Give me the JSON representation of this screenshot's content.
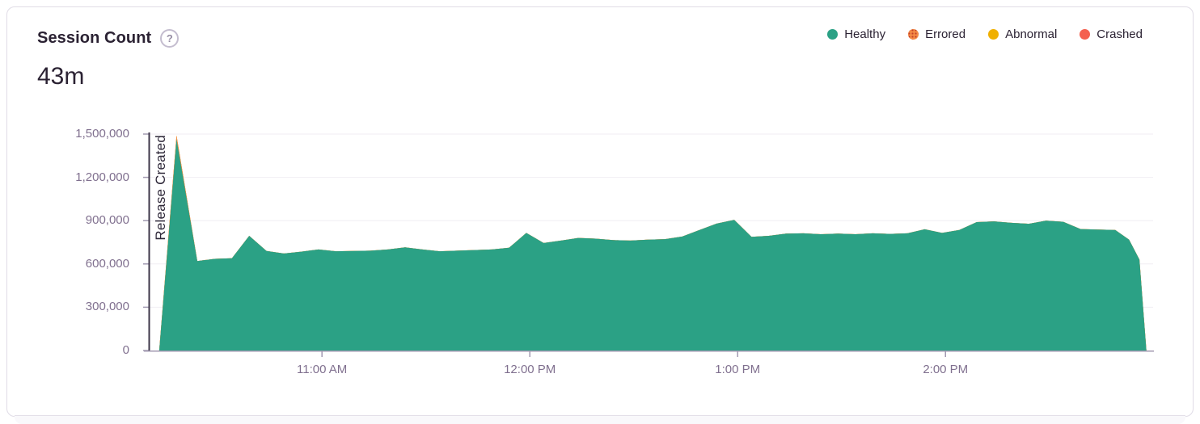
{
  "card": {
    "title": "Session Count",
    "help_icon": "?",
    "big_value": "43m",
    "legend": [
      {
        "label": "Healthy",
        "color": "#2ba185",
        "pattern": "solid"
      },
      {
        "label": "Errored",
        "color": "#f58c46",
        "pattern": "dotted"
      },
      {
        "label": "Abnormal",
        "color": "#f0b000",
        "pattern": "solid"
      },
      {
        "label": "Crashed",
        "color": "#f4604f",
        "pattern": "solid"
      }
    ]
  },
  "chart_data": {
    "type": "area",
    "stacked": true,
    "title": "Session Count",
    "xlabel": "",
    "ylabel": "",
    "grid": "horizontal",
    "legend_position": "top-right",
    "x_range": [
      "10:10",
      "14:59"
    ],
    "y_range": [
      0,
      1500000
    ],
    "y_ticks": [
      {
        "value": 0,
        "label": "0"
      },
      {
        "value": 300000,
        "label": "300,000"
      },
      {
        "value": 600000,
        "label": "600,000"
      },
      {
        "value": 900000,
        "label": "900,000"
      },
      {
        "value": 1200000,
        "label": "1,200,000"
      },
      {
        "value": 1500000,
        "label": "1,500,000"
      }
    ],
    "x_ticks": [
      {
        "time": "11:00",
        "label": "11:00 AM"
      },
      {
        "time": "12:00",
        "label": "12:00 PM"
      },
      {
        "time": "13:00",
        "label": "1:00 PM"
      },
      {
        "time": "14:00",
        "label": "2:00 PM"
      }
    ],
    "annotation": {
      "label": "Release Created",
      "time": "10:10"
    },
    "times": [
      "10:13",
      "10:18",
      "10:24",
      "10:29",
      "10:34",
      "10:39",
      "10:44",
      "10:49",
      "10:54",
      "10:59",
      "11:04",
      "11:09",
      "11:14",
      "11:19",
      "11:24",
      "11:29",
      "11:34",
      "11:39",
      "11:44",
      "11:49",
      "11:54",
      "11:59",
      "12:04",
      "12:09",
      "12:14",
      "12:19",
      "12:24",
      "12:29",
      "12:34",
      "12:39",
      "12:44",
      "12:49",
      "12:54",
      "12:59",
      "13:04",
      "13:09",
      "13:14",
      "13:19",
      "13:24",
      "13:29",
      "13:34",
      "13:39",
      "13:44",
      "13:49",
      "13:54",
      "13:59",
      "14:04",
      "14:09",
      "14:14",
      "14:19",
      "14:24",
      "14:29",
      "14:34",
      "14:39",
      "14:44",
      "14:49",
      "14:53",
      "14:56",
      "14:58"
    ],
    "series": [
      {
        "name": "Healthy",
        "color": "#2ba185",
        "values": [
          0,
          1465000,
          620000,
          635000,
          640000,
          795000,
          690000,
          672000,
          685000,
          700000,
          688000,
          690000,
          692000,
          700000,
          715000,
          700000,
          688000,
          692000,
          696000,
          700000,
          712000,
          815000,
          745000,
          762000,
          780000,
          775000,
          765000,
          762000,
          768000,
          772000,
          790000,
          835000,
          880000,
          905000,
          788000,
          795000,
          810000,
          812000,
          806000,
          810000,
          806000,
          812000,
          808000,
          812000,
          840000,
          815000,
          835000,
          890000,
          895000,
          885000,
          878000,
          900000,
          892000,
          842000,
          838000,
          835000,
          768000,
          630000,
          0
        ]
      },
      {
        "name": "Errored",
        "color": "#f58c46",
        "sparse_values": {
          "1": 25000
        }
      },
      {
        "name": "Abnormal",
        "color": "#f0b000",
        "sparse_values": {}
      },
      {
        "name": "Crashed",
        "color": "#f4604f",
        "sparse_values": {}
      }
    ]
  }
}
